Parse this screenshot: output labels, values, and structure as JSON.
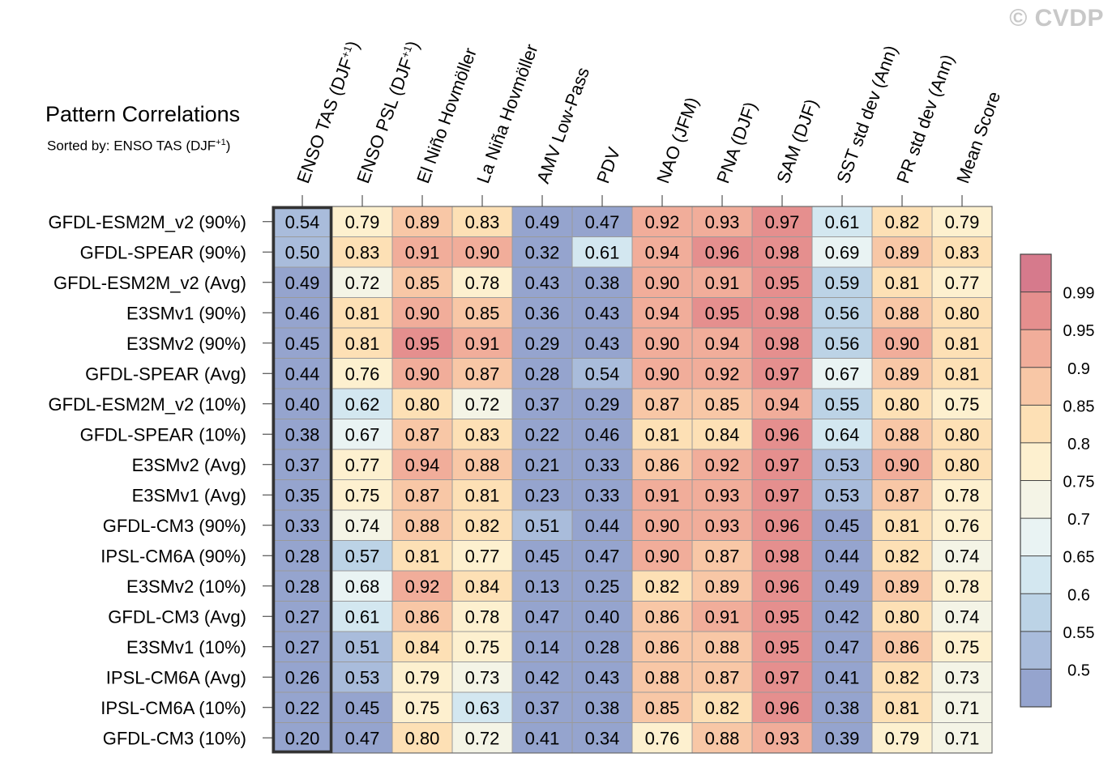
{
  "watermark": "© CVDP",
  "chart_data": {
    "type": "heatmap",
    "title": "Pattern Correlations",
    "subtitle_prefix": "Sorted by: ENSO TAS (DJF",
    "subtitle_sup": "+1",
    "subtitle_suffix": ")",
    "columns": [
      {
        "label": "ENSO TAS (DJF",
        "sup": "+1",
        "suffix": ")"
      },
      {
        "label": "ENSO PSL (DJF",
        "sup": "+1",
        "suffix": ")"
      },
      {
        "label": "El Niño Hovmöller",
        "sup": "",
        "suffix": ""
      },
      {
        "label": "La Niña Hovmöller",
        "sup": "",
        "suffix": ""
      },
      {
        "label": "AMV Low-Pass",
        "sup": "",
        "suffix": ""
      },
      {
        "label": "PDV",
        "sup": "",
        "suffix": ""
      },
      {
        "label": "NAO (JFM)",
        "sup": "",
        "suffix": ""
      },
      {
        "label": "PNA (DJF)",
        "sup": "",
        "suffix": ""
      },
      {
        "label": "SAM (DJF)",
        "sup": "",
        "suffix": ""
      },
      {
        "label": "SST std dev (Ann)",
        "sup": "",
        "suffix": ""
      },
      {
        "label": "PR std dev (Ann)",
        "sup": "",
        "suffix": ""
      },
      {
        "label": "Mean Score",
        "sup": "",
        "suffix": ""
      }
    ],
    "rows": [
      "GFDL-ESM2M_v2 (90%)",
      "GFDL-SPEAR (90%)",
      "GFDL-ESM2M_v2 (Avg)",
      "E3SMv1 (90%)",
      "E3SMv2 (90%)",
      "GFDL-SPEAR (Avg)",
      "GFDL-ESM2M_v2 (10%)",
      "GFDL-SPEAR (10%)",
      "E3SMv2 (Avg)",
      "E3SMv1 (Avg)",
      "GFDL-CM3 (90%)",
      "IPSL-CM6A (90%)",
      "E3SMv2 (10%)",
      "GFDL-CM3 (Avg)",
      "E3SMv1 (10%)",
      "IPSL-CM6A (Avg)",
      "IPSL-CM6A (10%)",
      "GFDL-CM3 (10%)"
    ],
    "values": [
      [
        0.54,
        0.79,
        0.89,
        0.83,
        0.49,
        0.47,
        0.92,
        0.93,
        0.97,
        0.61,
        0.82,
        0.79
      ],
      [
        0.5,
        0.83,
        0.91,
        0.9,
        0.32,
        0.61,
        0.94,
        0.96,
        0.98,
        0.69,
        0.89,
        0.83
      ],
      [
        0.49,
        0.72,
        0.85,
        0.78,
        0.43,
        0.38,
        0.9,
        0.91,
        0.95,
        0.59,
        0.81,
        0.77
      ],
      [
        0.46,
        0.81,
        0.9,
        0.85,
        0.36,
        0.43,
        0.94,
        0.95,
        0.98,
        0.56,
        0.88,
        0.8
      ],
      [
        0.45,
        0.81,
        0.95,
        0.91,
        0.29,
        0.43,
        0.9,
        0.94,
        0.98,
        0.56,
        0.9,
        0.81
      ],
      [
        0.44,
        0.76,
        0.9,
        0.87,
        0.28,
        0.54,
        0.9,
        0.92,
        0.97,
        0.67,
        0.89,
        0.81
      ],
      [
        0.4,
        0.62,
        0.8,
        0.72,
        0.37,
        0.29,
        0.87,
        0.85,
        0.94,
        0.55,
        0.8,
        0.75
      ],
      [
        0.38,
        0.67,
        0.87,
        0.83,
        0.22,
        0.46,
        0.81,
        0.84,
        0.96,
        0.64,
        0.88,
        0.8
      ],
      [
        0.37,
        0.77,
        0.94,
        0.88,
        0.21,
        0.33,
        0.86,
        0.92,
        0.97,
        0.53,
        0.9,
        0.8
      ],
      [
        0.35,
        0.75,
        0.87,
        0.81,
        0.23,
        0.33,
        0.91,
        0.93,
        0.97,
        0.53,
        0.87,
        0.78
      ],
      [
        0.33,
        0.74,
        0.88,
        0.82,
        0.51,
        0.44,
        0.9,
        0.93,
        0.96,
        0.45,
        0.81,
        0.76
      ],
      [
        0.28,
        0.57,
        0.81,
        0.77,
        0.45,
        0.47,
        0.9,
        0.87,
        0.98,
        0.44,
        0.82,
        0.74
      ],
      [
        0.28,
        0.68,
        0.92,
        0.84,
        0.13,
        0.25,
        0.82,
        0.89,
        0.96,
        0.49,
        0.89,
        0.78
      ],
      [
        0.27,
        0.61,
        0.86,
        0.78,
        0.47,
        0.4,
        0.86,
        0.91,
        0.95,
        0.42,
        0.8,
        0.74
      ],
      [
        0.27,
        0.51,
        0.84,
        0.75,
        0.14,
        0.28,
        0.86,
        0.88,
        0.95,
        0.47,
        0.86,
        0.75
      ],
      [
        0.26,
        0.53,
        0.79,
        0.73,
        0.42,
        0.43,
        0.88,
        0.87,
        0.97,
        0.41,
        0.82,
        0.73
      ],
      [
        0.22,
        0.45,
        0.75,
        0.63,
        0.37,
        0.38,
        0.85,
        0.82,
        0.96,
        0.38,
        0.81,
        0.71
      ],
      [
        0.2,
        0.47,
        0.8,
        0.72,
        0.41,
        0.34,
        0.76,
        0.88,
        0.93,
        0.39,
        0.79,
        0.71
      ]
    ],
    "highlighted_column": 0,
    "colorbar": {
      "levels": [
        0.5,
        0.55,
        0.6,
        0.65,
        0.7,
        0.75,
        0.8,
        0.85,
        0.9,
        0.95,
        0.99
      ],
      "labels": [
        "0.5",
        "0.55",
        "0.6",
        "0.65",
        "0.7",
        "0.75",
        "0.8",
        "0.85",
        "0.9",
        "0.95",
        "0.99"
      ],
      "colors": [
        "#95a4ce",
        "#a9bcdb",
        "#bcd3e6",
        "#d3e7f0",
        "#e9f3f3",
        "#f4f4e6",
        "#fdf0cf",
        "#fde0b5",
        "#f8c7a6",
        "#f1ad9a",
        "#e58f8e",
        "#d67a8c"
      ]
    }
  }
}
